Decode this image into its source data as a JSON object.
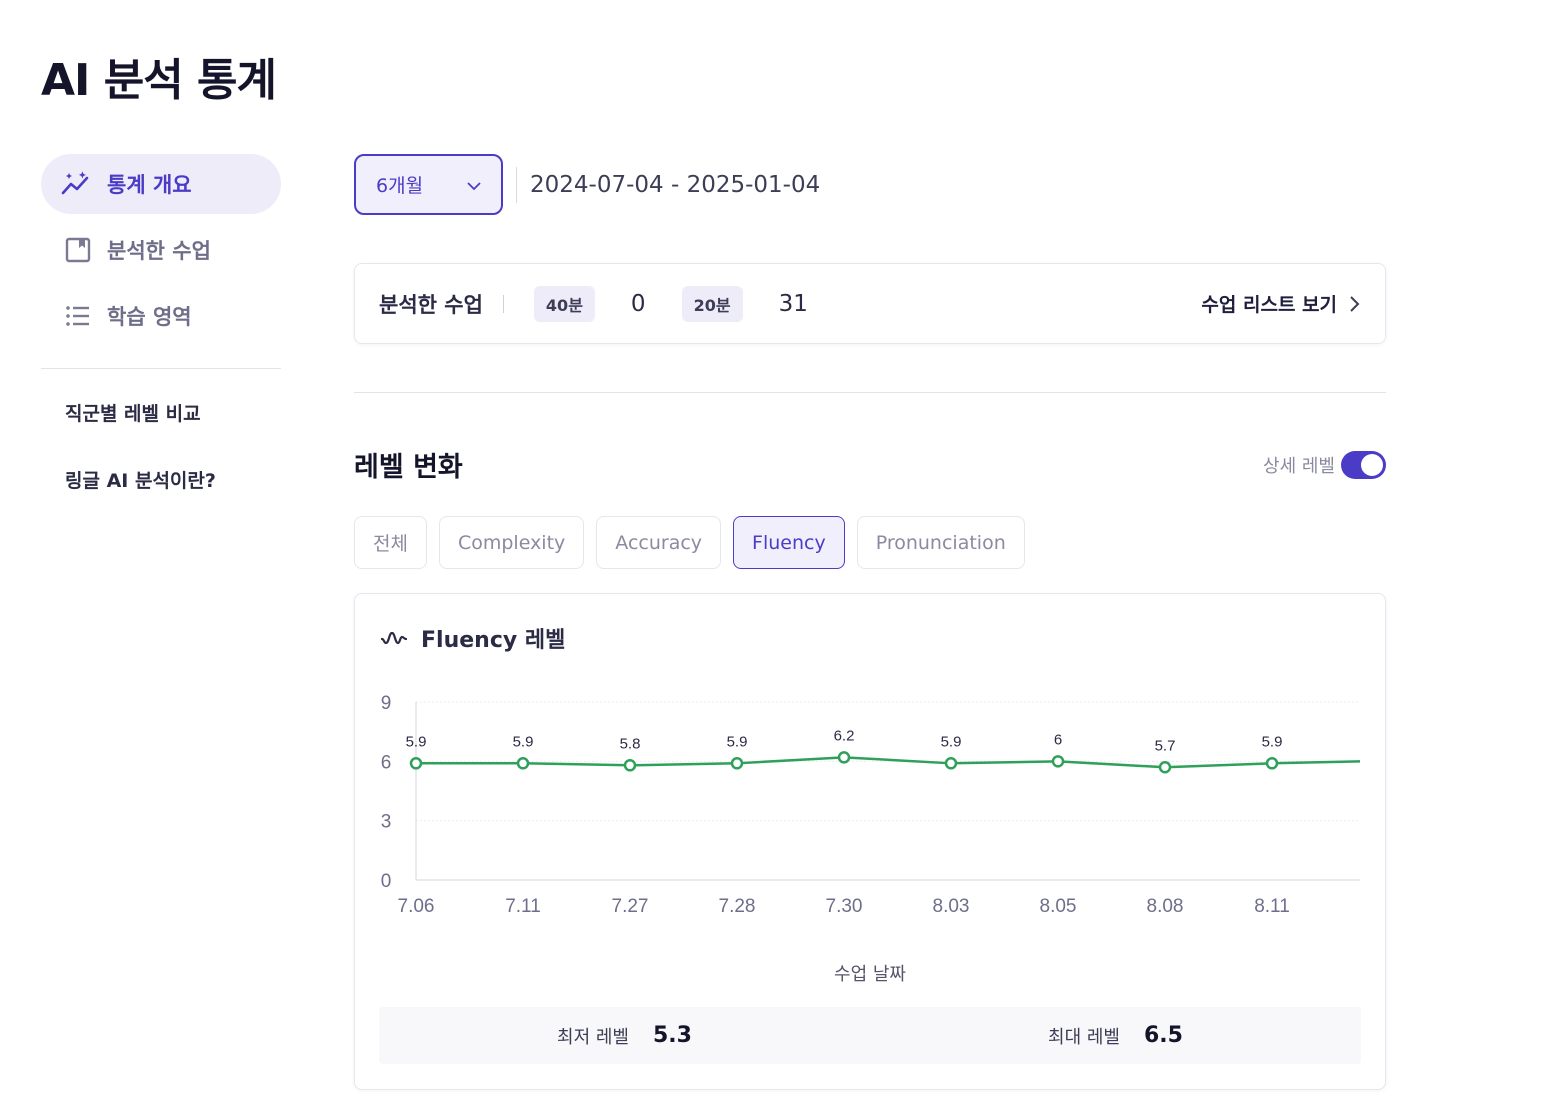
{
  "page": {
    "title": "AI 분석 통계"
  },
  "sidebar": {
    "items": [
      {
        "label": "통계 개요",
        "icon": "chart-sparkle-icon",
        "active": true
      },
      {
        "label": "분석한 수업",
        "icon": "bookmark-icon",
        "active": false
      },
      {
        "label": "학습 영역",
        "icon": "list-icon",
        "active": false
      }
    ],
    "links": [
      {
        "label": "직군별 레벨 비교"
      },
      {
        "label": "링글 AI 분석이란?"
      }
    ]
  },
  "filter": {
    "period": "6개월",
    "period_icon": "chevron-down-icon",
    "date_range": "2024-07-04 - 2025-01-04"
  },
  "lessons": {
    "title": "분석한 수업",
    "badges": [
      {
        "label": "40분",
        "count": "0"
      },
      {
        "label": "20분",
        "count": "31"
      }
    ],
    "link_label": "수업 리스트 보기",
    "link_icon": "chevron-right-icon"
  },
  "level": {
    "title": "레벨 변화",
    "detail_label": "상세 레벨",
    "detail_on": true,
    "tabs": [
      "전체",
      "Complexity",
      "Accuracy",
      "Fluency",
      "Pronunciation"
    ],
    "active_tab": "Fluency"
  },
  "chart": {
    "title": "Fluency 레벨",
    "icon": "wave-icon",
    "xlabel": "수업 날짜",
    "summary": {
      "min_label": "최저 레벨",
      "min_value": "5.3",
      "max_label": "최대 레벨",
      "max_value": "6.5"
    }
  },
  "chart_data": {
    "type": "line",
    "categories": [
      "7.06",
      "7.11",
      "7.27",
      "7.28",
      "7.30",
      "8.03",
      "8.05",
      "8.08",
      "8.11"
    ],
    "series": [
      {
        "values": [
          5.9,
          5.9,
          5.8,
          5.9,
          6.2,
          5.9,
          6,
          5.7,
          5.9
        ],
        "trailing_value": 6.0,
        "color": "#2fa05a"
      }
    ],
    "yticks": [
      0,
      3,
      6,
      9
    ],
    "ylim": [
      0,
      9
    ],
    "xlabel": "수업 날짜",
    "grid": true
  }
}
